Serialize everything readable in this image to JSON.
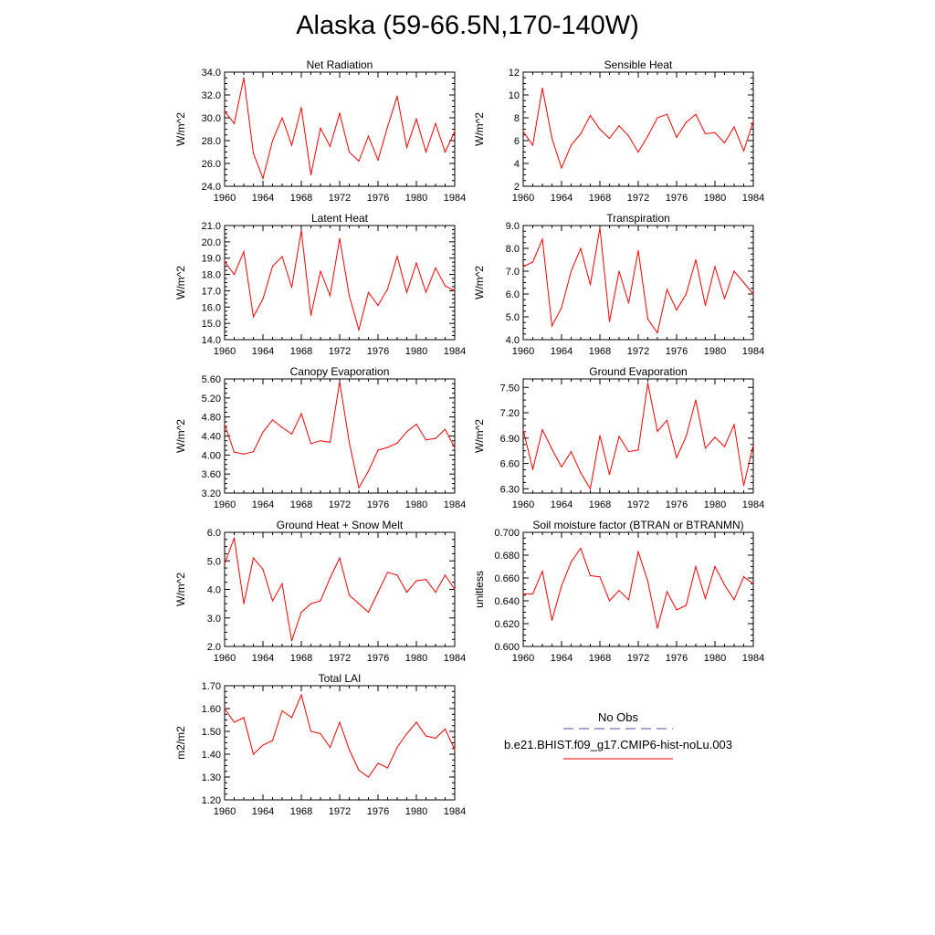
{
  "title": "Alaska (59-66.5N,170-140W)",
  "colors": {
    "series": "#ff0000",
    "obs": "#4d4daa",
    "axis": "#000000"
  },
  "legend": {
    "obs_label": "No Obs",
    "model_label": "b.e21.BHIST.f09_g17.CMIP6-hist-noLu.003"
  },
  "chart_data": [
    {
      "type": "line",
      "title": "Net Radiation",
      "ylabel": "W/m^2",
      "xlim": [
        1960,
        1984
      ],
      "xticks": [
        "1960",
        "1964",
        "1968",
        "1972",
        "1976",
        "1980",
        "1984"
      ],
      "ylim": [
        24.0,
        34.0
      ],
      "yticks": [
        "24.0",
        "26.0",
        "28.0",
        "30.0",
        "32.0",
        "34.0"
      ],
      "x": [
        1960,
        1961,
        1962,
        1963,
        1964,
        1965,
        1966,
        1967,
        1968,
        1969,
        1970,
        1971,
        1972,
        1973,
        1974,
        1975,
        1976,
        1977,
        1978,
        1979,
        1980,
        1981,
        1982,
        1983,
        1984
      ],
      "series": [
        {
          "values": [
            30.6,
            29.5,
            33.5,
            26.9,
            24.7,
            28.0,
            30.0,
            27.6,
            30.9,
            25.0,
            29.1,
            27.5,
            30.4,
            27.0,
            26.2,
            28.4,
            26.3,
            29.2,
            31.9,
            27.4,
            29.9,
            27.0,
            29.5,
            27.0,
            28.8
          ]
        }
      ]
    },
    {
      "type": "line",
      "title": "Sensible Heat",
      "ylabel": "W/m^2",
      "xlim": [
        1960,
        1984
      ],
      "xticks": [
        "1960",
        "1964",
        "1968",
        "1972",
        "1976",
        "1980",
        "1984"
      ],
      "ylim": [
        2,
        12
      ],
      "yticks": [
        "2",
        "4",
        "6",
        "8",
        "10",
        "12"
      ],
      "x": [
        1960,
        1961,
        1962,
        1963,
        1964,
        1965,
        1966,
        1967,
        1968,
        1969,
        1970,
        1971,
        1972,
        1973,
        1974,
        1975,
        1976,
        1977,
        1978,
        1979,
        1980,
        1981,
        1982,
        1983,
        1984
      ],
      "series": [
        {
          "values": [
            6.8,
            5.6,
            10.6,
            6.2,
            3.6,
            5.6,
            6.6,
            8.2,
            7.0,
            6.2,
            7.3,
            6.4,
            5.0,
            6.4,
            8.0,
            8.3,
            6.3,
            7.6,
            8.3,
            6.6,
            6.7,
            5.8,
            7.2,
            5.1,
            7.7
          ]
        }
      ]
    },
    {
      "type": "line",
      "title": "Latent Heat",
      "ylabel": "W/m^2",
      "xlim": [
        1960,
        1984
      ],
      "xticks": [
        "1960",
        "1964",
        "1968",
        "1972",
        "1976",
        "1980",
        "1984"
      ],
      "ylim": [
        14.0,
        21.0
      ],
      "yticks": [
        "14.0",
        "15.0",
        "16.0",
        "17.0",
        "18.0",
        "19.0",
        "20.0",
        "21.0"
      ],
      "x": [
        1960,
        1961,
        1962,
        1963,
        1964,
        1965,
        1966,
        1967,
        1968,
        1969,
        1970,
        1971,
        1972,
        1973,
        1974,
        1975,
        1976,
        1977,
        1978,
        1979,
        1980,
        1981,
        1982,
        1983,
        1984
      ],
      "series": [
        {
          "values": [
            18.8,
            18.0,
            19.4,
            15.4,
            16.5,
            18.5,
            19.1,
            17.2,
            20.7,
            15.5,
            18.2,
            16.7,
            20.2,
            16.7,
            14.6,
            16.9,
            16.1,
            17.1,
            19.1,
            16.9,
            18.7,
            16.9,
            18.4,
            17.3,
            17.0
          ]
        }
      ]
    },
    {
      "type": "line",
      "title": "Transpiration",
      "ylabel": "W/m^2",
      "xlim": [
        1960,
        1984
      ],
      "xticks": [
        "1960",
        "1964",
        "1968",
        "1972",
        "1976",
        "1980",
        "1984"
      ],
      "ylim": [
        4.0,
        9.0
      ],
      "yticks": [
        "4.0",
        "5.0",
        "6.0",
        "7.0",
        "8.0",
        "9.0"
      ],
      "x": [
        1960,
        1961,
        1962,
        1963,
        1964,
        1965,
        1966,
        1967,
        1968,
        1969,
        1970,
        1971,
        1972,
        1973,
        1974,
        1975,
        1976,
        1977,
        1978,
        1979,
        1980,
        1981,
        1982,
        1983,
        1984
      ],
      "series": [
        {
          "values": [
            7.2,
            7.4,
            8.4,
            4.6,
            5.4,
            7.0,
            8.0,
            6.4,
            8.9,
            4.8,
            7.0,
            5.6,
            7.9,
            4.9,
            4.3,
            6.2,
            5.3,
            6.0,
            7.5,
            5.5,
            7.2,
            5.8,
            7.0,
            6.5,
            6.0
          ]
        }
      ]
    },
    {
      "type": "line",
      "title": "Canopy Evaporation",
      "ylabel": "W/m^2",
      "xlim": [
        1960,
        1984
      ],
      "xticks": [
        "1960",
        "1964",
        "1968",
        "1972",
        "1976",
        "1980",
        "1984"
      ],
      "ylim": [
        3.2,
        5.6
      ],
      "yticks": [
        "3.20",
        "3.60",
        "4.00",
        "4.40",
        "4.80",
        "5.20",
        "5.60"
      ],
      "x": [
        1960,
        1961,
        1962,
        1963,
        1964,
        1965,
        1966,
        1967,
        1968,
        1969,
        1970,
        1971,
        1972,
        1973,
        1974,
        1975,
        1976,
        1977,
        1978,
        1979,
        1980,
        1981,
        1982,
        1983,
        1984
      ],
      "series": [
        {
          "values": [
            4.65,
            4.06,
            4.02,
            4.07,
            4.48,
            4.74,
            4.58,
            4.44,
            4.87,
            4.24,
            4.3,
            4.27,
            5.54,
            4.27,
            3.31,
            3.66,
            4.1,
            4.16,
            4.25,
            4.49,
            4.65,
            4.32,
            4.35,
            4.54,
            4.15
          ]
        }
      ]
    },
    {
      "type": "line",
      "title": "Ground Evaporation",
      "ylabel": "W/m^2",
      "xlim": [
        1960,
        1984
      ],
      "xticks": [
        "1960",
        "1964",
        "1968",
        "1972",
        "1976",
        "1980",
        "1984"
      ],
      "ylim": [
        6.25,
        7.6
      ],
      "yticks": [
        "6.30",
        "6.60",
        "6.90",
        "7.20",
        "7.50"
      ],
      "x": [
        1960,
        1961,
        1962,
        1963,
        1964,
        1965,
        1966,
        1967,
        1968,
        1969,
        1970,
        1971,
        1972,
        1973,
        1974,
        1975,
        1976,
        1977,
        1978,
        1979,
        1980,
        1981,
        1982,
        1983,
        1984
      ],
      "series": [
        {
          "values": [
            7.0,
            6.53,
            7.0,
            6.77,
            6.56,
            6.74,
            6.49,
            6.3,
            6.93,
            6.47,
            6.92,
            6.74,
            6.76,
            7.55,
            6.98,
            7.11,
            6.67,
            6.92,
            7.35,
            6.78,
            6.91,
            6.8,
            7.06,
            6.34,
            6.82
          ]
        }
      ]
    },
    {
      "type": "line",
      "title": "Ground Heat + Snow Melt",
      "ylabel": "W/m^2",
      "xlim": [
        1960,
        1984
      ],
      "xticks": [
        "1960",
        "1964",
        "1968",
        "1972",
        "1976",
        "1980",
        "1984"
      ],
      "ylim": [
        2.0,
        6.0
      ],
      "yticks": [
        "2.0",
        "3.0",
        "4.0",
        "5.0",
        "6.0"
      ],
      "x": [
        1960,
        1961,
        1962,
        1963,
        1964,
        1965,
        1966,
        1967,
        1968,
        1969,
        1970,
        1971,
        1972,
        1973,
        1974,
        1975,
        1976,
        1977,
        1978,
        1979,
        1980,
        1981,
        1982,
        1983,
        1984
      ],
      "series": [
        {
          "values": [
            4.9,
            5.8,
            3.5,
            5.1,
            4.7,
            3.6,
            4.2,
            2.2,
            3.2,
            3.5,
            3.6,
            4.4,
            5.1,
            3.8,
            3.5,
            3.2,
            3.9,
            4.6,
            4.5,
            3.9,
            4.3,
            4.35,
            3.9,
            4.5,
            4.0
          ]
        }
      ]
    },
    {
      "type": "line",
      "title": "Soil moisture factor (BTRAN or BTRANMN)",
      "ylabel": "unitless",
      "xlim": [
        1960,
        1984
      ],
      "xticks": [
        "1960",
        "1964",
        "1968",
        "1972",
        "1976",
        "1980",
        "1984"
      ],
      "ylim": [
        0.6,
        0.7
      ],
      "yticks": [
        "0.600",
        "0.620",
        "0.640",
        "0.660",
        "0.680",
        "0.700"
      ],
      "x": [
        1960,
        1961,
        1962,
        1963,
        1964,
        1965,
        1966,
        1967,
        1968,
        1969,
        1970,
        1971,
        1972,
        1973,
        1974,
        1975,
        1976,
        1977,
        1978,
        1979,
        1980,
        1981,
        1982,
        1983,
        1984
      ],
      "series": [
        {
          "values": [
            0.646,
            0.646,
            0.666,
            0.623,
            0.653,
            0.674,
            0.686,
            0.662,
            0.661,
            0.64,
            0.649,
            0.641,
            0.683,
            0.657,
            0.616,
            0.648,
            0.632,
            0.636,
            0.67,
            0.642,
            0.67,
            0.654,
            0.641,
            0.661,
            0.655
          ]
        }
      ]
    },
    {
      "type": "line",
      "title": "Total LAI",
      "ylabel": "m2/m2",
      "xlim": [
        1960,
        1984
      ],
      "xticks": [
        "1960",
        "1964",
        "1968",
        "1972",
        "1976",
        "1980",
        "1984"
      ],
      "ylim": [
        1.2,
        1.7
      ],
      "yticks": [
        "1.20",
        "1.30",
        "1.40",
        "1.50",
        "1.60",
        "1.70"
      ],
      "x": [
        1960,
        1961,
        1962,
        1963,
        1964,
        1965,
        1966,
        1967,
        1968,
        1969,
        1970,
        1971,
        1972,
        1973,
        1974,
        1975,
        1976,
        1977,
        1978,
        1979,
        1980,
        1981,
        1982,
        1983,
        1984
      ],
      "series": [
        {
          "values": [
            1.6,
            1.54,
            1.56,
            1.4,
            1.44,
            1.46,
            1.59,
            1.56,
            1.66,
            1.5,
            1.49,
            1.43,
            1.54,
            1.42,
            1.33,
            1.3,
            1.36,
            1.34,
            1.43,
            1.49,
            1.54,
            1.48,
            1.47,
            1.51,
            1.42
          ]
        }
      ]
    }
  ]
}
